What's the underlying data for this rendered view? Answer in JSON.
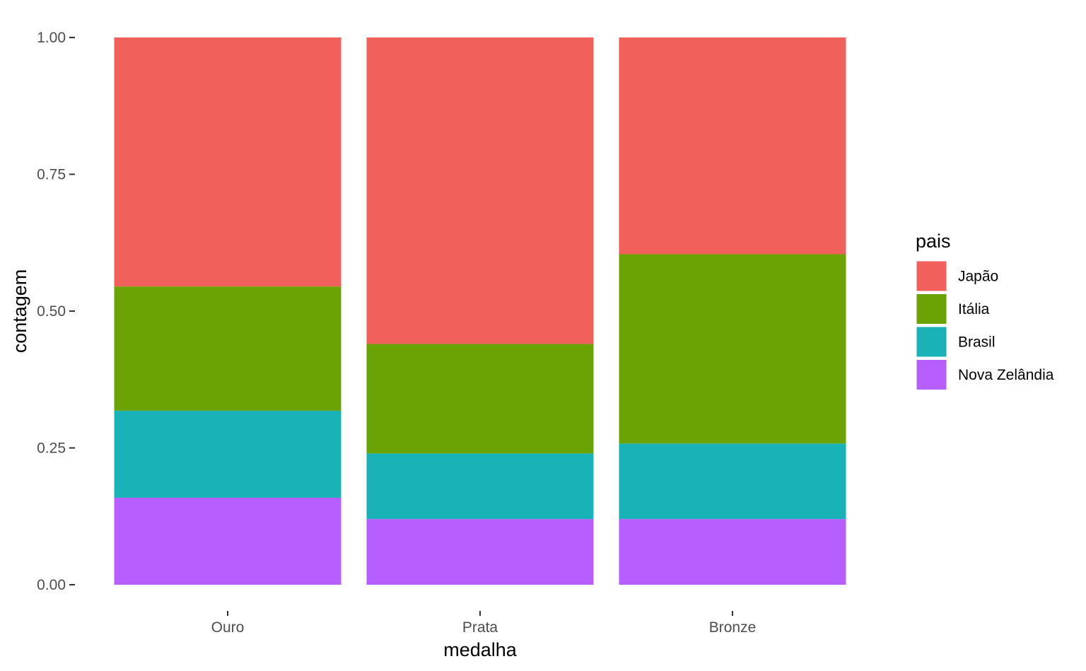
{
  "chart_data": {
    "type": "bar",
    "stacked": true,
    "normalized": true,
    "title": "",
    "xlabel": "medalha",
    "ylabel": "contagem",
    "categories": [
      "Ouro",
      "Prata",
      "Bronze"
    ],
    "ylim": [
      0,
      1
    ],
    "yticks": [
      "0.00",
      "0.25",
      "0.50",
      "0.75",
      "1.00"
    ],
    "grid": false,
    "legend": {
      "title": "pais",
      "position": "right"
    },
    "series": [
      {
        "name": "Japão",
        "color": "#F2605C",
        "values": [
          0.455,
          0.56,
          0.396
        ]
      },
      {
        "name": "Itália",
        "color": "#6BA304",
        "values": [
          0.227,
          0.2,
          0.346
        ]
      },
      {
        "name": "Brasil",
        "color": "#19B3B7",
        "values": [
          0.159,
          0.12,
          0.138
        ]
      },
      {
        "name": "Nova Zelândia",
        "color": "#B65FFE",
        "values": [
          0.159,
          0.12,
          0.12
        ]
      }
    ]
  }
}
